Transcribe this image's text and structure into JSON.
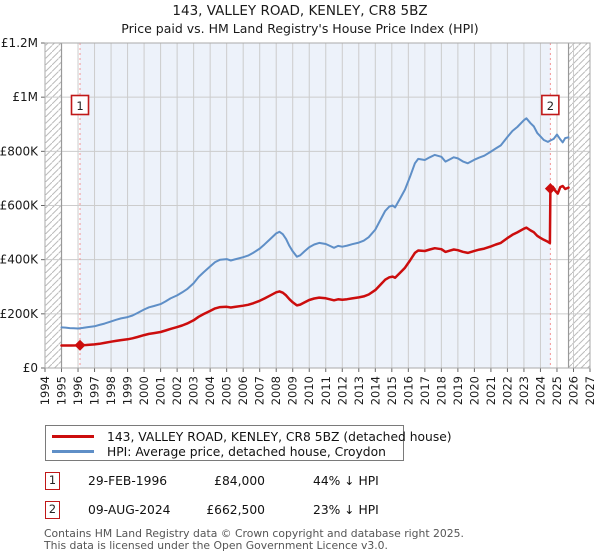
{
  "title": "143, VALLEY ROAD, KENLEY, CR8 5BZ",
  "subtitle": "Price paid vs. HM Land Registry's House Price Index (HPI)",
  "colors": {
    "price_line": "#cc0d0d",
    "hpi_line": "#5f8fc7",
    "ownership_shade": "#edf2fa",
    "grid": "#cccccc",
    "plot_border": "#aaaaaa",
    "data_edge": "#999999",
    "event_line": "#f59393",
    "marker_box_border": "#c01818",
    "hatch": "#bbbbbb",
    "tick": "#666666",
    "label_text": "#1a1a1a",
    "footer_text": "#555555"
  },
  "chart_data": {
    "type": "line",
    "title": "143, VALLEY ROAD, KENLEY, CR8 5BZ",
    "subtitle": "Price paid vs. HM Land Registry's House Price Index (HPI)",
    "x_axis": {
      "min": 1994,
      "max": 2027,
      "ticks": [
        "1994",
        "1995",
        "1996",
        "1997",
        "1998",
        "1999",
        "2000",
        "2001",
        "2002",
        "2003",
        "2004",
        "2005",
        "2006",
        "2007",
        "2008",
        "2009",
        "2010",
        "2011",
        "2012",
        "2013",
        "2014",
        "2015",
        "2016",
        "2017",
        "2018",
        "2019",
        "2020",
        "2021",
        "2022",
        "2023",
        "2024",
        "2025",
        "2026",
        "2027"
      ]
    },
    "y_axis": {
      "min": 0,
      "max": 1200000,
      "ticks": [
        {
          "value": 0,
          "label": "£0"
        },
        {
          "value": 200000,
          "label": "£200K"
        },
        {
          "value": 400000,
          "label": "£400K"
        },
        {
          "value": 600000,
          "label": "£600K"
        },
        {
          "value": 800000,
          "label": "£800K"
        },
        {
          "value": 1000000,
          "label": "£1M"
        },
        {
          "value": 1200000,
          "label": "£1.2M"
        }
      ]
    },
    "grid": true,
    "legend_position": "bottom",
    "data_start": 1995.0,
    "data_end": 2025.7,
    "series": [
      {
        "name": "143, VALLEY ROAD, KENLEY, CR8 5BZ (detached house)",
        "color_key": "price_line",
        "stroke_width": 2.5,
        "points": [
          [
            1995.0,
            83000
          ],
          [
            1995.3,
            83000
          ],
          [
            1995.6,
            83200
          ],
          [
            1996.0,
            83600
          ],
          [
            1996.12,
            84000
          ],
          [
            1996.5,
            85000
          ],
          [
            1997.0,
            87000
          ],
          [
            1997.3,
            89500
          ],
          [
            1997.6,
            92500
          ],
          [
            1998.0,
            97000
          ],
          [
            1998.3,
            100000
          ],
          [
            1998.6,
            103000
          ],
          [
            1999.0,
            106000
          ],
          [
            1999.3,
            109500
          ],
          [
            1999.6,
            114500
          ],
          [
            2000.0,
            121500
          ],
          [
            2000.3,
            126000
          ],
          [
            2000.6,
            129000
          ],
          [
            2001.0,
            133000
          ],
          [
            2001.3,
            138500
          ],
          [
            2001.6,
            144500
          ],
          [
            2002.0,
            151000
          ],
          [
            2002.3,
            157000
          ],
          [
            2002.6,
            164000
          ],
          [
            2003.0,
            176000
          ],
          [
            2003.3,
            189000
          ],
          [
            2003.6,
            199000
          ],
          [
            2004.0,
            211000
          ],
          [
            2004.3,
            220000
          ],
          [
            2004.6,
            225000
          ],
          [
            2005.0,
            226000
          ],
          [
            2005.25,
            223500
          ],
          [
            2005.5,
            225500
          ],
          [
            2006.0,
            230000
          ],
          [
            2006.3,
            233500
          ],
          [
            2006.6,
            239000
          ],
          [
            2007.0,
            248000
          ],
          [
            2007.3,
            257000
          ],
          [
            2007.6,
            266500
          ],
          [
            2008.0,
            279500
          ],
          [
            2008.2,
            283000
          ],
          [
            2008.4,
            278000
          ],
          [
            2008.6,
            268000
          ],
          [
            2008.8,
            254000
          ],
          [
            2009.0,
            242500
          ],
          [
            2009.25,
            231000
          ],
          [
            2009.45,
            234000
          ],
          [
            2009.7,
            242000
          ],
          [
            2010.0,
            251000
          ],
          [
            2010.3,
            256500
          ],
          [
            2010.6,
            260000
          ],
          [
            2011.0,
            257500
          ],
          [
            2011.25,
            253500
          ],
          [
            2011.5,
            250000
          ],
          [
            2011.75,
            253500
          ],
          [
            2012.0,
            252000
          ],
          [
            2012.3,
            254000
          ],
          [
            2012.6,
            257000
          ],
          [
            2013.0,
            260500
          ],
          [
            2013.3,
            264500
          ],
          [
            2013.6,
            271500
          ],
          [
            2014.0,
            287500
          ],
          [
            2014.3,
            307000
          ],
          [
            2014.6,
            326000
          ],
          [
            2014.85,
            335000
          ],
          [
            2015.05,
            337500
          ],
          [
            2015.2,
            333500
          ],
          [
            2015.5,
            352000
          ],
          [
            2015.8,
            370500
          ],
          [
            2016.1,
            397000
          ],
          [
            2016.4,
            425000
          ],
          [
            2016.6,
            434000
          ],
          [
            2017.0,
            432000
          ],
          [
            2017.3,
            437500
          ],
          [
            2017.6,
            442500
          ],
          [
            2018.0,
            438500
          ],
          [
            2018.25,
            428500
          ],
          [
            2018.5,
            433000
          ],
          [
            2018.75,
            437500
          ],
          [
            2019.0,
            435000
          ],
          [
            2019.3,
            429000
          ],
          [
            2019.6,
            425000
          ],
          [
            2020.0,
            432500
          ],
          [
            2020.3,
            437000
          ],
          [
            2020.6,
            441000
          ],
          [
            2021.0,
            449000
          ],
          [
            2021.3,
            456000
          ],
          [
            2021.6,
            462000
          ],
          [
            2022.0,
            479500
          ],
          [
            2022.3,
            492000
          ],
          [
            2022.6,
            500500
          ],
          [
            2023.0,
            514500
          ],
          [
            2023.15,
            518500
          ],
          [
            2023.4,
            508000
          ],
          [
            2023.6,
            501500
          ],
          [
            2023.8,
            488000
          ],
          [
            2024.0,
            480500
          ],
          [
            2024.2,
            473500
          ],
          [
            2024.45,
            466000
          ],
          [
            2024.57,
            461000
          ],
          [
            2024.6,
            662500
          ],
          [
            2024.75,
            669000
          ],
          [
            2024.9,
            654000
          ],
          [
            2025.05,
            644000
          ],
          [
            2025.2,
            668000
          ],
          [
            2025.35,
            672000
          ],
          [
            2025.5,
            661000
          ],
          [
            2025.7,
            666000
          ]
        ]
      },
      {
        "name": "HPI: Average price, detached house, Croydon",
        "color_key": "hpi_line",
        "stroke_width": 2,
        "points": [
          [
            1995.0,
            150000
          ],
          [
            1995.25,
            149000
          ],
          [
            1995.5,
            147500
          ],
          [
            1995.75,
            146500
          ],
          [
            1996.0,
            146000
          ],
          [
            1996.3,
            148000
          ],
          [
            1996.6,
            151000
          ],
          [
            1997.0,
            154000
          ],
          [
            1997.3,
            159000
          ],
          [
            1997.6,
            164000
          ],
          [
            1998.0,
            172000
          ],
          [
            1998.3,
            178000
          ],
          [
            1998.6,
            183000
          ],
          [
            1999.0,
            188000
          ],
          [
            1999.3,
            194000
          ],
          [
            1999.6,
            203000
          ],
          [
            2000.0,
            216000
          ],
          [
            2000.3,
            224000
          ],
          [
            2000.6,
            229000
          ],
          [
            2001.0,
            236000
          ],
          [
            2001.3,
            246000
          ],
          [
            2001.6,
            257000
          ],
          [
            2002.0,
            268000
          ],
          [
            2002.3,
            279000
          ],
          [
            2002.6,
            291000
          ],
          [
            2003.0,
            313000
          ],
          [
            2003.3,
            336000
          ],
          [
            2003.6,
            353000
          ],
          [
            2004.0,
            375000
          ],
          [
            2004.3,
            391000
          ],
          [
            2004.6,
            400000
          ],
          [
            2005.0,
            402000
          ],
          [
            2005.25,
            397000
          ],
          [
            2005.5,
            401000
          ],
          [
            2006.0,
            409000
          ],
          [
            2006.3,
            415000
          ],
          [
            2006.6,
            425000
          ],
          [
            2007.0,
            441000
          ],
          [
            2007.3,
            457000
          ],
          [
            2007.6,
            474000
          ],
          [
            2008.0,
            497000
          ],
          [
            2008.2,
            503000
          ],
          [
            2008.4,
            494000
          ],
          [
            2008.6,
            476000
          ],
          [
            2008.8,
            451000
          ],
          [
            2009.0,
            431000
          ],
          [
            2009.25,
            411000
          ],
          [
            2009.45,
            416000
          ],
          [
            2009.7,
            430000
          ],
          [
            2010.0,
            446000
          ],
          [
            2010.3,
            456000
          ],
          [
            2010.6,
            462000
          ],
          [
            2011.0,
            458000
          ],
          [
            2011.25,
            451000
          ],
          [
            2011.5,
            444000
          ],
          [
            2011.75,
            451000
          ],
          [
            2012.0,
            448000
          ],
          [
            2012.3,
            452000
          ],
          [
            2012.6,
            457000
          ],
          [
            2013.0,
            463000
          ],
          [
            2013.3,
            470000
          ],
          [
            2013.6,
            483000
          ],
          [
            2014.0,
            511000
          ],
          [
            2014.3,
            546000
          ],
          [
            2014.6,
            580000
          ],
          [
            2014.85,
            596000
          ],
          [
            2015.05,
            600000
          ],
          [
            2015.2,
            593000
          ],
          [
            2015.5,
            626000
          ],
          [
            2015.8,
            659000
          ],
          [
            2016.1,
            706000
          ],
          [
            2016.4,
            756000
          ],
          [
            2016.6,
            772000
          ],
          [
            2017.0,
            768000
          ],
          [
            2017.3,
            778000
          ],
          [
            2017.6,
            787000
          ],
          [
            2018.0,
            780000
          ],
          [
            2018.25,
            762000
          ],
          [
            2018.5,
            770000
          ],
          [
            2018.75,
            778000
          ],
          [
            2019.0,
            774000
          ],
          [
            2019.3,
            763000
          ],
          [
            2019.6,
            756000
          ],
          [
            2020.0,
            769000
          ],
          [
            2020.3,
            777000
          ],
          [
            2020.6,
            784000
          ],
          [
            2021.0,
            799000
          ],
          [
            2021.3,
            811000
          ],
          [
            2021.6,
            822000
          ],
          [
            2022.0,
            853000
          ],
          [
            2022.3,
            875000
          ],
          [
            2022.6,
            890000
          ],
          [
            2023.0,
            915000
          ],
          [
            2023.15,
            922000
          ],
          [
            2023.4,
            904000
          ],
          [
            2023.6,
            892000
          ],
          [
            2023.8,
            868000
          ],
          [
            2024.0,
            855000
          ],
          [
            2024.2,
            842000
          ],
          [
            2024.45,
            835000
          ],
          [
            2024.6,
            840000
          ],
          [
            2024.8,
            846000
          ],
          [
            2025.0,
            862000
          ],
          [
            2025.2,
            844000
          ],
          [
            2025.35,
            833000
          ],
          [
            2025.5,
            849000
          ],
          [
            2025.7,
            852000
          ]
        ]
      }
    ],
    "transactions": [
      {
        "n": "1",
        "year": 1996.12,
        "value": 84000,
        "date": "29-FEB-1996",
        "price": "£84,000",
        "delta": "44% ↓ HPI"
      },
      {
        "n": "2",
        "year": 2024.6,
        "value": 662500,
        "date": "09-AUG-2024",
        "price": "£662,500",
        "delta": "23% ↓ HPI"
      }
    ]
  },
  "footer": {
    "line1": "Contains HM Land Registry data © Crown copyright and database right 2025.",
    "line2": "This data is licensed under the Open Government Licence v3.0."
  }
}
